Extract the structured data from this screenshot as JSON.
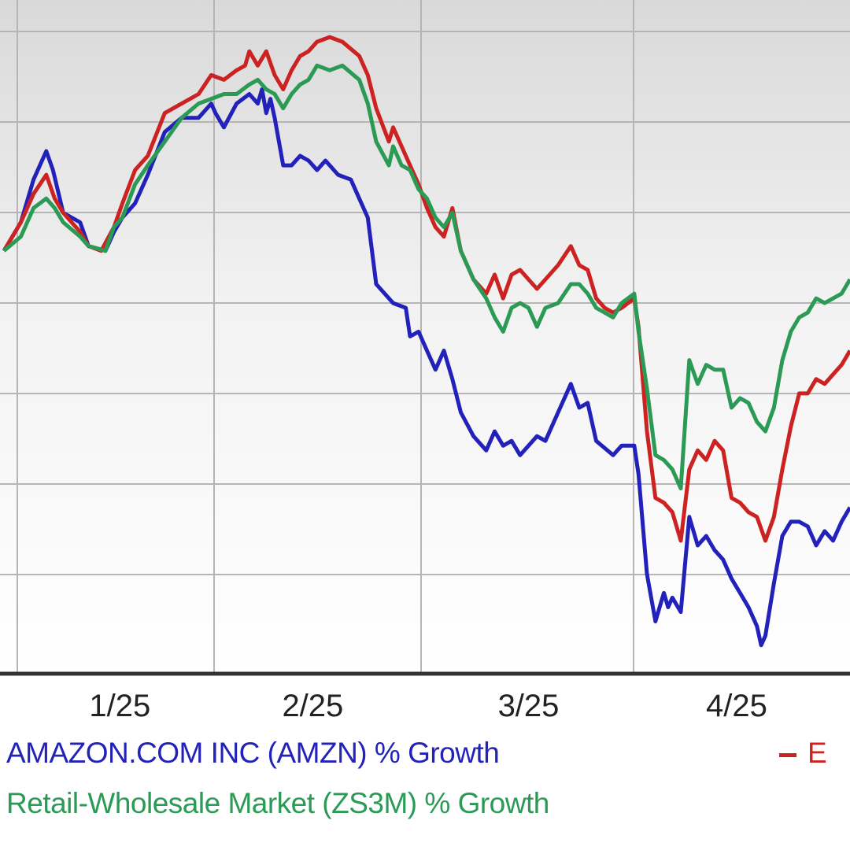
{
  "chart_data": {
    "type": "line",
    "title": "",
    "xlabel": "",
    "ylabel": "",
    "x_ticks": [
      {
        "label": "1/25",
        "t": 0.137
      },
      {
        "label": "2/25",
        "t": 0.365
      },
      {
        "label": "3/25",
        "t": 0.62
      },
      {
        "label": "4/25",
        "t": 0.866
      }
    ],
    "grid": true,
    "legend_placement": "bottom",
    "series": [
      {
        "key": "amzn",
        "name": "AMAZON.COM INC (AMZN) % Growth",
        "color": "#2222bb",
        "points": [
          [
            0.0,
            0.38
          ],
          [
            0.02,
            0.44
          ],
          [
            0.035,
            0.53
          ],
          [
            0.05,
            0.59
          ],
          [
            0.058,
            0.55
          ],
          [
            0.07,
            0.46
          ],
          [
            0.09,
            0.44
          ],
          [
            0.1,
            0.39
          ],
          [
            0.12,
            0.38
          ],
          [
            0.13,
            0.42
          ],
          [
            0.14,
            0.45
          ],
          [
            0.155,
            0.48
          ],
          [
            0.17,
            0.54
          ],
          [
            0.19,
            0.63
          ],
          [
            0.21,
            0.66
          ],
          [
            0.23,
            0.66
          ],
          [
            0.245,
            0.69
          ],
          [
            0.25,
            0.67
          ],
          [
            0.26,
            0.64
          ],
          [
            0.275,
            0.69
          ],
          [
            0.29,
            0.71
          ],
          [
            0.3,
            0.69
          ],
          [
            0.305,
            0.72
          ],
          [
            0.31,
            0.67
          ],
          [
            0.315,
            0.7
          ],
          [
            0.32,
            0.66
          ],
          [
            0.33,
            0.56
          ],
          [
            0.34,
            0.56
          ],
          [
            0.35,
            0.58
          ],
          [
            0.36,
            0.57
          ],
          [
            0.37,
            0.55
          ],
          [
            0.38,
            0.57
          ],
          [
            0.395,
            0.54
          ],
          [
            0.41,
            0.53
          ],
          [
            0.42,
            0.49
          ],
          [
            0.43,
            0.45
          ],
          [
            0.44,
            0.31
          ],
          [
            0.46,
            0.27
          ],
          [
            0.475,
            0.26
          ],
          [
            0.48,
            0.2
          ],
          [
            0.49,
            0.21
          ],
          [
            0.5,
            0.17
          ],
          [
            0.51,
            0.13
          ],
          [
            0.52,
            0.17
          ],
          [
            0.53,
            0.11
          ],
          [
            0.54,
            0.04
          ],
          [
            0.555,
            -0.01
          ],
          [
            0.57,
            -0.04
          ],
          [
            0.58,
            0.0
          ],
          [
            0.59,
            -0.03
          ],
          [
            0.6,
            -0.02
          ],
          [
            0.61,
            -0.05
          ],
          [
            0.63,
            -0.01
          ],
          [
            0.64,
            -0.02
          ],
          [
            0.655,
            0.04
          ],
          [
            0.67,
            0.1
          ],
          [
            0.68,
            0.05
          ],
          [
            0.69,
            0.06
          ],
          [
            0.7,
            -0.02
          ],
          [
            0.72,
            -0.05
          ],
          [
            0.73,
            -0.03
          ],
          [
            0.745,
            -0.03
          ],
          [
            0.75,
            -0.09
          ],
          [
            0.76,
            -0.3
          ],
          [
            0.77,
            -0.4
          ],
          [
            0.775,
            -0.37
          ],
          [
            0.78,
            -0.34
          ],
          [
            0.785,
            -0.37
          ],
          [
            0.79,
            -0.35
          ],
          [
            0.8,
            -0.38
          ],
          [
            0.81,
            -0.18
          ],
          [
            0.82,
            -0.24
          ],
          [
            0.83,
            -0.22
          ],
          [
            0.84,
            -0.25
          ],
          [
            0.85,
            -0.27
          ],
          [
            0.86,
            -0.31
          ],
          [
            0.87,
            -0.34
          ],
          [
            0.88,
            -0.37
          ],
          [
            0.89,
            -0.41
          ],
          [
            0.895,
            -0.45
          ],
          [
            0.9,
            -0.43
          ],
          [
            0.91,
            -0.32
          ],
          [
            0.92,
            -0.22
          ],
          [
            0.93,
            -0.19
          ],
          [
            0.94,
            -0.19
          ],
          [
            0.95,
            -0.2
          ],
          [
            0.96,
            -0.24
          ],
          [
            0.97,
            -0.21
          ],
          [
            0.98,
            -0.23
          ],
          [
            0.99,
            -0.19
          ],
          [
            1.0,
            -0.16
          ]
        ]
      },
      {
        "key": "partial",
        "name": "E",
        "color": "#cc2222",
        "points": [
          [
            0.0,
            0.38
          ],
          [
            0.02,
            0.44
          ],
          [
            0.035,
            0.5
          ],
          [
            0.05,
            0.54
          ],
          [
            0.06,
            0.49
          ],
          [
            0.07,
            0.46
          ],
          [
            0.09,
            0.42
          ],
          [
            0.1,
            0.39
          ],
          [
            0.115,
            0.38
          ],
          [
            0.13,
            0.43
          ],
          [
            0.14,
            0.48
          ],
          [
            0.155,
            0.55
          ],
          [
            0.17,
            0.58
          ],
          [
            0.19,
            0.67
          ],
          [
            0.21,
            0.69
          ],
          [
            0.23,
            0.71
          ],
          [
            0.245,
            0.75
          ],
          [
            0.26,
            0.74
          ],
          [
            0.275,
            0.76
          ],
          [
            0.285,
            0.77
          ],
          [
            0.29,
            0.8
          ],
          [
            0.3,
            0.77
          ],
          [
            0.31,
            0.8
          ],
          [
            0.32,
            0.75
          ],
          [
            0.33,
            0.72
          ],
          [
            0.34,
            0.76
          ],
          [
            0.35,
            0.79
          ],
          [
            0.36,
            0.8
          ],
          [
            0.37,
            0.82
          ],
          [
            0.385,
            0.83
          ],
          [
            0.4,
            0.82
          ],
          [
            0.42,
            0.79
          ],
          [
            0.43,
            0.75
          ],
          [
            0.44,
            0.68
          ],
          [
            0.455,
            0.61
          ],
          [
            0.46,
            0.64
          ],
          [
            0.47,
            0.6
          ],
          [
            0.48,
            0.56
          ],
          [
            0.49,
            0.52
          ],
          [
            0.5,
            0.47
          ],
          [
            0.51,
            0.43
          ],
          [
            0.52,
            0.41
          ],
          [
            0.53,
            0.47
          ],
          [
            0.54,
            0.38
          ],
          [
            0.555,
            0.32
          ],
          [
            0.57,
            0.29
          ],
          [
            0.58,
            0.33
          ],
          [
            0.59,
            0.28
          ],
          [
            0.6,
            0.33
          ],
          [
            0.61,
            0.34
          ],
          [
            0.62,
            0.32
          ],
          [
            0.63,
            0.3
          ],
          [
            0.64,
            0.32
          ],
          [
            0.655,
            0.35
          ],
          [
            0.67,
            0.39
          ],
          [
            0.68,
            0.35
          ],
          [
            0.69,
            0.34
          ],
          [
            0.7,
            0.28
          ],
          [
            0.71,
            0.26
          ],
          [
            0.72,
            0.25
          ],
          [
            0.73,
            0.26
          ],
          [
            0.745,
            0.28
          ],
          [
            0.75,
            0.22
          ],
          [
            0.76,
            0.0
          ],
          [
            0.77,
            -0.14
          ],
          [
            0.78,
            -0.15
          ],
          [
            0.79,
            -0.17
          ],
          [
            0.8,
            -0.23
          ],
          [
            0.81,
            -0.08
          ],
          [
            0.82,
            -0.04
          ],
          [
            0.83,
            -0.06
          ],
          [
            0.84,
            -0.02
          ],
          [
            0.85,
            -0.04
          ],
          [
            0.86,
            -0.14
          ],
          [
            0.87,
            -0.15
          ],
          [
            0.88,
            -0.17
          ],
          [
            0.89,
            -0.18
          ],
          [
            0.9,
            -0.23
          ],
          [
            0.91,
            -0.18
          ],
          [
            0.92,
            -0.08
          ],
          [
            0.93,
            0.01
          ],
          [
            0.94,
            0.08
          ],
          [
            0.95,
            0.08
          ],
          [
            0.96,
            0.11
          ],
          [
            0.97,
            0.1
          ],
          [
            0.98,
            0.12
          ],
          [
            0.99,
            0.14
          ],
          [
            1.0,
            0.17
          ]
        ]
      },
      {
        "key": "market",
        "name": "Retail-Wholesale Market (ZS3M) % Growth",
        "color": "#2a9a55",
        "points": [
          [
            0.0,
            0.38
          ],
          [
            0.02,
            0.41
          ],
          [
            0.035,
            0.47
          ],
          [
            0.05,
            0.49
          ],
          [
            0.06,
            0.47
          ],
          [
            0.07,
            0.44
          ],
          [
            0.09,
            0.41
          ],
          [
            0.1,
            0.39
          ],
          [
            0.12,
            0.38
          ],
          [
            0.13,
            0.43
          ],
          [
            0.14,
            0.45
          ],
          [
            0.155,
            0.52
          ],
          [
            0.17,
            0.56
          ],
          [
            0.19,
            0.61
          ],
          [
            0.21,
            0.66
          ],
          [
            0.23,
            0.69
          ],
          [
            0.245,
            0.7
          ],
          [
            0.26,
            0.71
          ],
          [
            0.275,
            0.71
          ],
          [
            0.29,
            0.73
          ],
          [
            0.3,
            0.74
          ],
          [
            0.31,
            0.72
          ],
          [
            0.32,
            0.71
          ],
          [
            0.33,
            0.68
          ],
          [
            0.34,
            0.71
          ],
          [
            0.35,
            0.73
          ],
          [
            0.36,
            0.74
          ],
          [
            0.37,
            0.77
          ],
          [
            0.385,
            0.76
          ],
          [
            0.4,
            0.77
          ],
          [
            0.42,
            0.74
          ],
          [
            0.43,
            0.69
          ],
          [
            0.44,
            0.61
          ],
          [
            0.455,
            0.56
          ],
          [
            0.46,
            0.6
          ],
          [
            0.47,
            0.56
          ],
          [
            0.48,
            0.55
          ],
          [
            0.49,
            0.51
          ],
          [
            0.5,
            0.49
          ],
          [
            0.51,
            0.45
          ],
          [
            0.52,
            0.43
          ],
          [
            0.53,
            0.46
          ],
          [
            0.54,
            0.38
          ],
          [
            0.555,
            0.32
          ],
          [
            0.57,
            0.28
          ],
          [
            0.58,
            0.24
          ],
          [
            0.59,
            0.21
          ],
          [
            0.6,
            0.26
          ],
          [
            0.61,
            0.27
          ],
          [
            0.62,
            0.26
          ],
          [
            0.63,
            0.22
          ],
          [
            0.64,
            0.26
          ],
          [
            0.655,
            0.27
          ],
          [
            0.67,
            0.31
          ],
          [
            0.68,
            0.31
          ],
          [
            0.69,
            0.29
          ],
          [
            0.7,
            0.26
          ],
          [
            0.71,
            0.25
          ],
          [
            0.72,
            0.24
          ],
          [
            0.73,
            0.27
          ],
          [
            0.745,
            0.29
          ],
          [
            0.75,
            0.21
          ],
          [
            0.76,
            0.09
          ],
          [
            0.77,
            -0.05
          ],
          [
            0.78,
            -0.06
          ],
          [
            0.79,
            -0.08
          ],
          [
            0.8,
            -0.12
          ],
          [
            0.81,
            0.15
          ],
          [
            0.82,
            0.1
          ],
          [
            0.83,
            0.14
          ],
          [
            0.84,
            0.13
          ],
          [
            0.85,
            0.13
          ],
          [
            0.86,
            0.05
          ],
          [
            0.87,
            0.07
          ],
          [
            0.88,
            0.06
          ],
          [
            0.89,
            0.02
          ],
          [
            0.9,
            0.0
          ],
          [
            0.91,
            0.05
          ],
          [
            0.92,
            0.15
          ],
          [
            0.93,
            0.21
          ],
          [
            0.94,
            0.24
          ],
          [
            0.95,
            0.25
          ],
          [
            0.96,
            0.28
          ],
          [
            0.97,
            0.27
          ],
          [
            0.98,
            0.28
          ],
          [
            0.99,
            0.29
          ],
          [
            1.0,
            0.32
          ]
        ]
      }
    ]
  },
  "legend": {
    "amzn_label": "AMAZON.COM INC (AMZN) % Growth",
    "market_label": "Retail-Wholesale Market (ZS3M) % Growth",
    "partial_label": "E"
  }
}
